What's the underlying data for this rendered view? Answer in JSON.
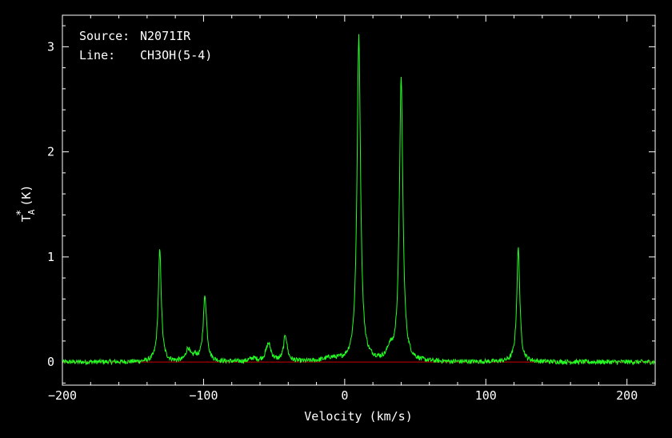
{
  "chart_data": {
    "type": "line",
    "source_label": "Source:",
    "source_value": "N2071IR",
    "line_label": "Line:",
    "line_value": "CH3OH(5-4)",
    "xlabel": "Velocity (km/s)",
    "ylabel_main": "T",
    "ylabel_sub": "A",
    "ylabel_sup": "*",
    "ylabel_unit": "(K)",
    "xlim": [
      -200,
      220
    ],
    "ylim": [
      -0.22,
      3.3
    ],
    "x_ticks": [
      -200,
      -100,
      0,
      100,
      200
    ],
    "x_tick_labels": [
      "−200",
      "−100",
      "0",
      "100",
      "200"
    ],
    "y_ticks": [
      0,
      1,
      2,
      3
    ],
    "y_tick_labels": [
      "0",
      "1",
      "2",
      "3"
    ],
    "x_minor_step": 20,
    "y_minor_step": 0.2,
    "baseline": 0,
    "baseline_color": "#cc0000",
    "series_color": "#22ff22",
    "peaks": [
      {
        "x": -131,
        "y": 1.06,
        "w": 1.3
      },
      {
        "x": -111,
        "y": 0.12,
        "w": 1.8
      },
      {
        "x": -106,
        "y": 0.05,
        "w": 1.5
      },
      {
        "x": -99,
        "y": 0.62,
        "w": 1.5
      },
      {
        "x": -65,
        "y": 0.03,
        "w": 3.0
      },
      {
        "x": -54,
        "y": 0.17,
        "w": 2.2
      },
      {
        "x": -42,
        "y": 0.25,
        "w": 1.5
      },
      {
        "x": -10,
        "y": 0.03,
        "w": 6.0
      },
      {
        "x": 10,
        "y": 3.09,
        "w": 1.5
      },
      {
        "x": 32,
        "y": 0.1,
        "w": 2.0
      },
      {
        "x": 40,
        "y": 2.68,
        "w": 1.5
      },
      {
        "x": 123,
        "y": 1.08,
        "w": 1.3
      }
    ]
  }
}
